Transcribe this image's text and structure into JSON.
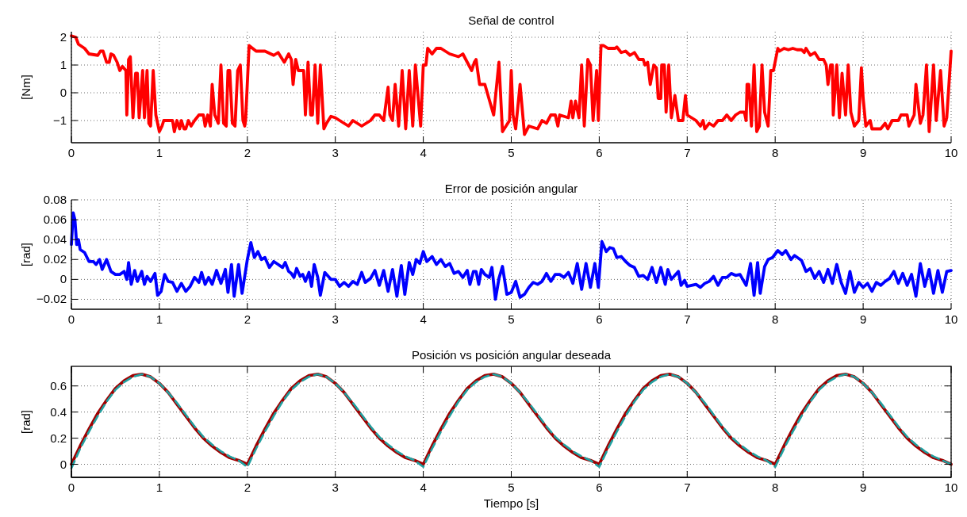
{
  "chart_data": [
    {
      "type": "line",
      "title": "Señal de control",
      "ylabel": "[Nm]",
      "xlim": [
        0,
        10
      ],
      "xticks": [
        0,
        1,
        2,
        3,
        4,
        5,
        6,
        7,
        8,
        9,
        10
      ],
      "ylim": [
        -1.8,
        2.2
      ],
      "yticks": [
        {
          "value": -1,
          "label": "−1"
        },
        0,
        1,
        2
      ],
      "grid": true,
      "series": [
        {
          "color": "#ff0000",
          "x": [
            0,
            0.05,
            0.08,
            0.15,
            0.2,
            0.3,
            0.33,
            0.36,
            0.4,
            0.43,
            0.45,
            0.48,
            0.52,
            0.55,
            0.58,
            0.62,
            0.63,
            0.65,
            0.67,
            0.7,
            0.73,
            0.75,
            0.77,
            0.81,
            0.83,
            0.86,
            0.88,
            0.9,
            0.93,
            0.96,
            1.0,
            1.03,
            1.05,
            1.15,
            1.17,
            1.2,
            1.23,
            1.25,
            1.28,
            1.3,
            1.33,
            1.36,
            1.4,
            1.45,
            1.5,
            1.52,
            1.55,
            1.58,
            1.6,
            1.63,
            1.67,
            1.7,
            1.73,
            1.76,
            1.78,
            1.8,
            1.83,
            1.86,
            1.89,
            1.92,
            1.95,
            1.97,
            1.98,
            2.02,
            2.1,
            2.2,
            2.3,
            2.35,
            2.42,
            2.47,
            2.5,
            2.52,
            2.55,
            2.58,
            2.64,
            2.66,
            2.69,
            2.72,
            2.74,
            2.77,
            2.8,
            2.83,
            2.87,
            2.9,
            2.95,
            3.0,
            3.1,
            3.15,
            3.2,
            3.3,
            3.4,
            3.45,
            3.5,
            3.55,
            3.6,
            3.62,
            3.65,
            3.68,
            3.72,
            3.76,
            3.8,
            3.84,
            3.88,
            3.91,
            3.97,
            4.0,
            4.03,
            4.05,
            4.1,
            4.15,
            4.2,
            4.3,
            4.4,
            4.45,
            4.5,
            4.55,
            4.58,
            4.6,
            4.64,
            4.7,
            4.8,
            4.86,
            4.9,
            4.98,
            5.0,
            5.02,
            5.05,
            5.1,
            5.15,
            5.2,
            5.3,
            5.35,
            5.4,
            5.45,
            5.5,
            5.53,
            5.55,
            5.65,
            5.68,
            5.7,
            5.73,
            5.77,
            5.8,
            5.83,
            5.87,
            5.9,
            5.93,
            5.97,
            5.99,
            6.02,
            6.05,
            6.1,
            6.18,
            6.2,
            6.25,
            6.3,
            6.35,
            6.4,
            6.45,
            6.5,
            6.52,
            6.55,
            6.58,
            6.62,
            6.65,
            6.67,
            6.7,
            6.71,
            6.74,
            6.76,
            6.79,
            6.82,
            6.86,
            6.9,
            6.95,
            6.98,
            7.0,
            7.1,
            7.15,
            7.18,
            7.2,
            7.25,
            7.3,
            7.35,
            7.4,
            7.45,
            7.5,
            7.55,
            7.6,
            7.65,
            7.67,
            7.68,
            7.7,
            7.73,
            7.76,
            7.79,
            7.82,
            7.85,
            7.88,
            7.92,
            7.95,
            7.98,
            8.03,
            8.05,
            8.1,
            8.15,
            8.2,
            8.25,
            8.3,
            8.33,
            8.35,
            8.4,
            8.45,
            8.5,
            8.55,
            8.58,
            8.6,
            8.63,
            8.65,
            8.66,
            8.7,
            8.73,
            8.76,
            8.8,
            8.83,
            8.86,
            8.9,
            8.95,
            8.98,
            9.0,
            9.03,
            9.08,
            9.1,
            9.2,
            9.25,
            9.28,
            9.33,
            9.4,
            9.43,
            9.5,
            9.52,
            9.58,
            9.6,
            9.65,
            9.68,
            9.72,
            9.75,
            9.8,
            9.83,
            9.88,
            9.92,
            9.95,
            10.0
          ],
          "values": [
            2.05,
            2.0,
            1.75,
            1.6,
            1.4,
            1.35,
            1.5,
            1.5,
            1.1,
            1.1,
            1.4,
            1.35,
            1.1,
            0.8,
            0.95,
            0.8,
            -0.8,
            1.2,
            1.3,
            -0.9,
            0.7,
            0.7,
            -0.9,
            0.8,
            -0.9,
            0.8,
            -1.1,
            -1.2,
            0.8,
            -0.8,
            -1.4,
            -1.2,
            -1.0,
            -1.0,
            -1.4,
            -1.0,
            -1.3,
            -1.0,
            -1.3,
            -1.3,
            -1.0,
            -1.2,
            -1.0,
            -0.8,
            -0.8,
            -1.2,
            -0.8,
            -1.2,
            0.3,
            -0.8,
            -1.1,
            1.0,
            -1.1,
            -1.2,
            0.8,
            0.8,
            -1.1,
            -1.2,
            0.8,
            1.0,
            -1.0,
            -1.2,
            -1.0,
            1.7,
            1.5,
            1.5,
            1.35,
            1.45,
            1.1,
            1.4,
            1.2,
            0.3,
            1.2,
            0.8,
            0.8,
            -0.8,
            1.1,
            -0.8,
            -0.8,
            1.0,
            -1.1,
            1.0,
            -1.3,
            -1.1,
            -0.85,
            -0.9,
            -1.1,
            -1.2,
            -1.0,
            -1.2,
            -1.0,
            -0.8,
            -0.8,
            -1.0,
            0.2,
            -0.8,
            -1.0,
            0.3,
            -1.2,
            0.8,
            -1.3,
            0.8,
            -1.2,
            1.0,
            -1.2,
            1.0,
            1.0,
            1.6,
            1.4,
            1.6,
            1.6,
            1.4,
            1.3,
            1.4,
            1.1,
            0.8,
            1.1,
            1.2,
            0.3,
            0.3,
            -0.8,
            1.1,
            -1.4,
            -1.0,
            0.8,
            -0.8,
            -1.3,
            0.3,
            -1.5,
            -1.2,
            -1.3,
            -1.0,
            -1.1,
            -0.8,
            -0.8,
            -1.2,
            -0.8,
            -0.9,
            -0.3,
            -0.9,
            -0.3,
            -0.9,
            1.0,
            -1.2,
            1.2,
            1.0,
            -1.0,
            0.8,
            -1.0,
            1.7,
            1.7,
            1.6,
            1.6,
            1.65,
            1.45,
            1.5,
            1.35,
            1.45,
            1.2,
            1.2,
            1.0,
            1.1,
            0.3,
            1.0,
            0.9,
            -0.2,
            -0.2,
            1.0,
            1.0,
            -0.7,
            1.0,
            -0.9,
            -0.1,
            -1.0,
            -1.0,
            -0.1,
            -0.8,
            -1.0,
            -1.2,
            -1.0,
            -1.3,
            -1.1,
            -1.2,
            -1.0,
            -1.0,
            -0.8,
            -1.0,
            -0.8,
            -0.7,
            -0.7,
            -1.0,
            0.3,
            0.3,
            -1.2,
            1.0,
            -1.4,
            -1.2,
            1.0,
            -0.7,
            -1.2,
            0.8,
            0.8,
            1.6,
            1.5,
            1.6,
            1.55,
            1.6,
            1.55,
            1.55,
            1.45,
            1.6,
            1.35,
            1.45,
            1.2,
            1.2,
            1.0,
            0.3,
            1.0,
            1.0,
            -0.8,
            1.0,
            -0.9,
            0.7,
            -0.8,
            1.0,
            -0.7,
            -1.2,
            -1.0,
            0.9,
            -0.2,
            -1.2,
            -1.0,
            -1.3,
            -1.3,
            -1.1,
            -1.3,
            -1.0,
            -1.0,
            -0.8,
            -0.8,
            -1.2,
            -0.8,
            0.3,
            -1.1,
            -0.8,
            1.0,
            -1.4,
            1.0,
            -1.0,
            0.8,
            -1.2,
            -0.9,
            1.5
          ]
        }
      ]
    },
    {
      "type": "line",
      "title": "Error de posición angular",
      "ylabel": "[rad]",
      "xlim": [
        0,
        10
      ],
      "xticks": [
        0,
        1,
        2,
        3,
        4,
        5,
        6,
        7,
        8,
        9,
        10
      ],
      "ylim": [
        -0.03,
        0.08
      ],
      "yticks": [
        {
          "value": -0.02,
          "label": "−0.02"
        },
        0,
        0.02,
        0.04,
        0.06,
        0.08
      ],
      "grid": true,
      "series": [
        {
          "color": "#0000ff",
          "x": [
            0,
            0.02,
            0.04,
            0.06,
            0.08,
            0.1,
            0.15,
            0.2,
            0.25,
            0.28,
            0.32,
            0.35,
            0.4,
            0.45,
            0.5,
            0.55,
            0.6,
            0.63,
            0.65,
            0.68,
            0.72,
            0.75,
            0.8,
            0.83,
            0.86,
            0.9,
            0.95,
            0.98,
            1.02,
            1.06,
            1.1,
            1.15,
            1.2,
            1.25,
            1.3,
            1.35,
            1.4,
            1.45,
            1.48,
            1.52,
            1.56,
            1.6,
            1.65,
            1.7,
            1.75,
            1.78,
            1.82,
            1.85,
            1.9,
            1.94,
            2.0,
            2.04,
            2.08,
            2.12,
            2.16,
            2.2,
            2.25,
            2.3,
            2.35,
            2.4,
            2.43,
            2.47,
            2.5,
            2.53,
            2.56,
            2.6,
            2.63,
            2.66,
            2.7,
            2.73,
            2.76,
            2.8,
            2.83,
            2.88,
            2.95,
            3.0,
            3.05,
            3.1,
            3.15,
            3.2,
            3.25,
            3.3,
            3.34,
            3.4,
            3.45,
            3.5,
            3.55,
            3.6,
            3.65,
            3.7,
            3.75,
            3.79,
            3.84,
            3.88,
            3.92,
            3.96,
            4.0,
            4.04,
            4.1,
            4.15,
            4.2,
            4.25,
            4.3,
            4.35,
            4.4,
            4.45,
            4.5,
            4.53,
            4.57,
            4.6,
            4.63,
            4.66,
            4.7,
            4.75,
            4.78,
            4.82,
            4.86,
            4.9,
            4.95,
            5.0,
            5.05,
            5.1,
            5.15,
            5.2,
            5.25,
            5.3,
            5.35,
            5.4,
            5.45,
            5.5,
            5.55,
            5.6,
            5.65,
            5.7,
            5.75,
            5.8,
            5.85,
            5.9,
            5.95,
            5.99,
            6.03,
            6.08,
            6.12,
            6.16,
            6.2,
            6.25,
            6.3,
            6.35,
            6.4,
            6.45,
            6.5,
            6.55,
            6.6,
            6.65,
            6.7,
            6.75,
            6.78,
            6.82,
            6.9,
            6.93,
            6.97,
            7.0,
            7.1,
            7.15,
            7.2,
            7.25,
            7.3,
            7.35,
            7.4,
            7.45,
            7.5,
            7.55,
            7.6,
            7.67,
            7.72,
            7.76,
            7.8,
            7.83,
            7.88,
            7.92,
            7.97,
            8.03,
            8.08,
            8.12,
            8.18,
            8.22,
            8.3,
            8.35,
            8.4,
            8.45,
            8.5,
            8.55,
            8.6,
            8.65,
            8.7,
            8.75,
            8.8,
            8.85,
            8.9,
            8.95,
            9.0,
            9.05,
            9.1,
            9.15,
            9.2,
            9.25,
            9.3,
            9.35,
            9.4,
            9.45,
            9.5,
            9.55,
            9.6,
            9.65,
            9.7,
            9.75,
            9.8,
            9.85,
            9.9,
            9.95,
            10.0
          ],
          "values": [
            0.035,
            0.067,
            0.06,
            0.035,
            0.04,
            0.03,
            0.027,
            0.018,
            0.018,
            0.015,
            0.02,
            0.01,
            0.02,
            0.008,
            0.005,
            0.005,
            0.008,
            0.0,
            0.017,
            -0.005,
            0.009,
            -0.002,
            0.008,
            -0.005,
            0.003,
            -0.002,
            0.006,
            -0.016,
            -0.012,
            0.005,
            -0.002,
            -0.003,
            -0.012,
            -0.004,
            -0.012,
            -0.007,
            0.002,
            -0.003,
            0.007,
            -0.005,
            0.002,
            -0.005,
            0.009,
            -0.004,
            0.01,
            -0.013,
            0.015,
            -0.017,
            0.015,
            -0.014,
            0.02,
            0.037,
            0.022,
            0.028,
            0.02,
            0.022,
            0.012,
            0.018,
            0.015,
            0.012,
            0.017,
            0.008,
            0.006,
            0.002,
            0.011,
            0.003,
            0.005,
            -0.002,
            0.007,
            -0.007,
            0.015,
            0.002,
            -0.016,
            0.007,
            0.0,
            0.0,
            -0.007,
            -0.003,
            -0.007,
            -0.002,
            -0.005,
            0.007,
            -0.003,
            0.001,
            0.009,
            -0.006,
            0.009,
            -0.012,
            0.01,
            -0.017,
            0.014,
            -0.015,
            0.017,
            0.005,
            0.02,
            0.016,
            0.028,
            0.018,
            0.023,
            0.015,
            0.02,
            0.013,
            0.016,
            0.006,
            0.008,
            0.002,
            0.009,
            -0.005,
            0.008,
            0.008,
            -0.005,
            0.01,
            0.005,
            0.002,
            0.012,
            -0.02,
            0.001,
            0.013,
            -0.015,
            -0.013,
            -0.002,
            -0.018,
            -0.015,
            -0.008,
            -0.003,
            -0.005,
            -0.002,
            0.006,
            -0.002,
            0.005,
            0.005,
            0.002,
            0.007,
            -0.004,
            0.016,
            -0.01,
            0.016,
            -0.008,
            0.016,
            -0.008,
            0.038,
            0.028,
            0.032,
            0.031,
            0.022,
            0.023,
            0.018,
            0.014,
            0.012,
            0.003,
            0.004,
            0.0,
            0.012,
            -0.003,
            0.012,
            -0.005,
            0.01,
            0.0,
            0.008,
            -0.006,
            -0.001,
            -0.007,
            -0.005,
            -0.008,
            -0.004,
            -0.002,
            0.003,
            -0.006,
            0.002,
            0.002,
            0.006,
            0.004,
            0.005,
            -0.006,
            0.016,
            -0.016,
            0.017,
            -0.014,
            0.013,
            0.02,
            0.022,
            0.029,
            0.025,
            0.029,
            0.02,
            0.024,
            0.019,
            0.008,
            0.011,
            0.001,
            0.008,
            -0.003,
            0.01,
            -0.004,
            0.015,
            -0.003,
            -0.014,
            0.008,
            -0.013,
            -0.003,
            -0.008,
            -0.004,
            -0.012,
            -0.003,
            -0.006,
            -0.002,
            0.001,
            0.008,
            -0.004,
            0.006,
            -0.006,
            0.005,
            -0.017,
            0.016,
            -0.007,
            0.01,
            -0.014,
            0.009,
            -0.013,
            0.008,
            0.009
          ]
        }
      ]
    },
    {
      "type": "line",
      "title": "Posición vs posición angular deseada",
      "ylabel": "[rad]",
      "xlabel": "Tiempo [s]",
      "xlim": [
        0,
        10
      ],
      "xticks": [
        0,
        1,
        2,
        3,
        4,
        5,
        6,
        7,
        8,
        9,
        10
      ],
      "ylim": [
        -0.1,
        0.75
      ],
      "yticks": [
        0,
        0.2,
        0.4,
        0.6
      ],
      "grid": true,
      "series": [
        {
          "color": "#a00000",
          "line_style": "solid",
          "x": [
            0,
            0.1,
            0.2,
            0.3,
            0.4,
            0.5,
            0.6,
            0.7,
            0.8,
            0.9,
            1,
            1.1,
            1.2,
            1.3,
            1.4,
            1.5,
            1.6,
            1.7,
            1.8,
            1.9,
            2,
            2.1,
            2.2,
            2.3,
            2.4,
            2.5,
            2.6,
            2.7,
            2.8,
            2.9,
            3,
            3.1,
            3.2,
            3.3,
            3.4,
            3.5,
            3.6,
            3.7,
            3.8,
            3.9,
            4,
            4.1,
            4.2,
            4.3,
            4.4,
            4.5,
            4.6,
            4.7,
            4.8,
            4.9,
            5,
            5.1,
            5.2,
            5.3,
            5.4,
            5.5,
            5.6,
            5.7,
            5.8,
            5.9,
            6,
            6.1,
            6.2,
            6.3,
            6.4,
            6.5,
            6.6,
            6.7,
            6.8,
            6.9,
            7,
            7.1,
            7.2,
            7.3,
            7.4,
            7.5,
            7.6,
            7.7,
            7.8,
            7.9,
            8,
            8.1,
            8.2,
            8.3,
            8.4,
            8.5,
            8.6,
            8.7,
            8.8,
            8.9,
            9,
            9.1,
            9.2,
            9.3,
            9.4,
            9.5,
            9.6,
            9.7,
            9.8,
            9.9,
            10
          ],
          "values": [
            0,
            0.14,
            0.27,
            0.39,
            0.49,
            0.58,
            0.64,
            0.68,
            0.69,
            0.67,
            0.62,
            0.55,
            0.46,
            0.37,
            0.28,
            0.2,
            0.14,
            0.09,
            0.05,
            0.03,
            0,
            0.14,
            0.27,
            0.39,
            0.49,
            0.58,
            0.64,
            0.68,
            0.69,
            0.67,
            0.62,
            0.55,
            0.46,
            0.37,
            0.28,
            0.2,
            0.14,
            0.09,
            0.05,
            0.03,
            0,
            0.14,
            0.27,
            0.39,
            0.49,
            0.58,
            0.64,
            0.68,
            0.69,
            0.67,
            0.62,
            0.55,
            0.46,
            0.37,
            0.28,
            0.2,
            0.14,
            0.09,
            0.05,
            0.03,
            0,
            0.14,
            0.27,
            0.39,
            0.49,
            0.58,
            0.64,
            0.68,
            0.69,
            0.67,
            0.62,
            0.55,
            0.46,
            0.37,
            0.28,
            0.2,
            0.14,
            0.09,
            0.05,
            0.03,
            0,
            0.14,
            0.27,
            0.39,
            0.49,
            0.58,
            0.64,
            0.68,
            0.69,
            0.67,
            0.62,
            0.55,
            0.46,
            0.37,
            0.28,
            0.2,
            0.14,
            0.09,
            0.05,
            0.03,
            0
          ]
        },
        {
          "color": "#20a0a0",
          "line_style": "dashed",
          "x": [
            0,
            0.1,
            0.2,
            0.3,
            0.4,
            0.5,
            0.6,
            0.7,
            0.8,
            0.9,
            1,
            1.1,
            1.2,
            1.3,
            1.4,
            1.5,
            1.6,
            1.7,
            1.8,
            1.9,
            2,
            2.1,
            2.2,
            2.3,
            2.4,
            2.5,
            2.6,
            2.7,
            2.8,
            2.9,
            3,
            3.1,
            3.2,
            3.3,
            3.4,
            3.5,
            3.6,
            3.7,
            3.8,
            3.9,
            4,
            4.1,
            4.2,
            4.3,
            4.4,
            4.5,
            4.6,
            4.7,
            4.8,
            4.9,
            5,
            5.1,
            5.2,
            5.3,
            5.4,
            5.5,
            5.6,
            5.7,
            5.8,
            5.9,
            6,
            6.1,
            6.2,
            6.3,
            6.4,
            6.5,
            6.6,
            6.7,
            6.8,
            6.9,
            7,
            7.1,
            7.2,
            7.3,
            7.4,
            7.5,
            7.6,
            7.7,
            7.8,
            7.9,
            8,
            8.1,
            8.2,
            8.3,
            8.4,
            8.5,
            8.6,
            8.7,
            8.8,
            8.9,
            9,
            9.1,
            9.2,
            9.3,
            9.4,
            9.5,
            9.6,
            9.7,
            9.8,
            9.9,
            10
          ],
          "values": [
            -0.03,
            0.12,
            0.25,
            0.37,
            0.48,
            0.57,
            0.63,
            0.67,
            0.69,
            0.67,
            0.62,
            0.55,
            0.47,
            0.38,
            0.29,
            0.21,
            0.15,
            0.1,
            0.06,
            0.03,
            -0.02,
            0.12,
            0.25,
            0.37,
            0.48,
            0.57,
            0.63,
            0.67,
            0.69,
            0.67,
            0.62,
            0.55,
            0.47,
            0.38,
            0.29,
            0.21,
            0.15,
            0.1,
            0.06,
            0.03,
            -0.02,
            0.12,
            0.25,
            0.37,
            0.48,
            0.57,
            0.63,
            0.67,
            0.69,
            0.67,
            0.62,
            0.55,
            0.47,
            0.38,
            0.29,
            0.21,
            0.15,
            0.1,
            0.06,
            0.03,
            -0.02,
            0.12,
            0.25,
            0.37,
            0.48,
            0.57,
            0.63,
            0.67,
            0.69,
            0.67,
            0.62,
            0.55,
            0.47,
            0.38,
            0.29,
            0.21,
            0.15,
            0.1,
            0.06,
            0.03,
            -0.02,
            0.12,
            0.25,
            0.37,
            0.48,
            0.57,
            0.63,
            0.67,
            0.69,
            0.67,
            0.62,
            0.55,
            0.47,
            0.38,
            0.29,
            0.21,
            0.15,
            0.1,
            0.06,
            0.03,
            0.0
          ]
        }
      ]
    }
  ]
}
